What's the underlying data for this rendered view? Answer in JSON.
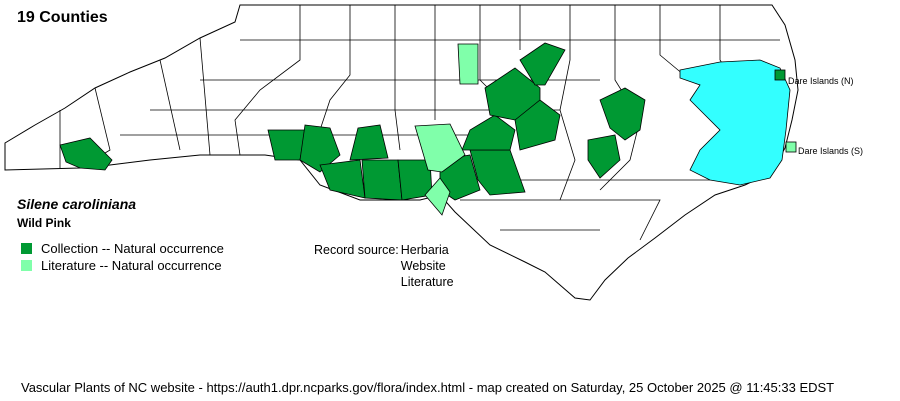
{
  "title": "19 Counties",
  "species": {
    "scientific_name": "Silene caroliniana",
    "common_name": "Wild Pink"
  },
  "legend": [
    {
      "label": "Collection -- Natural occurrence",
      "color": "#009933"
    },
    {
      "label": "Literature -- Natural occurrence",
      "color": "#80ffaa"
    }
  ],
  "record_source": {
    "label": "Record source:",
    "values": [
      "Herbaria",
      "Website",
      "Literature"
    ]
  },
  "islands": [
    {
      "label": "Dare Islands (N)",
      "status": "collection"
    },
    {
      "label": "Dare Islands (S)",
      "status": "literature"
    }
  ],
  "colors": {
    "collection": "#009933",
    "literature": "#80ffaa",
    "water": "#33ffff",
    "county_fill": "#ffffff"
  },
  "footer": "Vascular Plants of NC website - https://auth1.dpr.ncparks.gov/flora/index.html - map created on Saturday, 25 October 2025 @ 11:45:33 EDST"
}
